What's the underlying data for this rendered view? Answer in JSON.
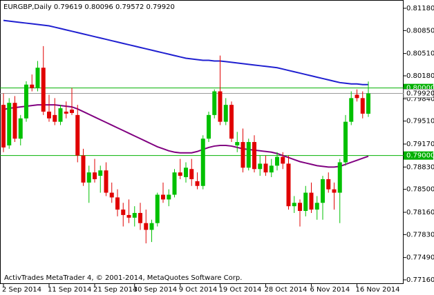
{
  "chart_data": {
    "type": "candlestick",
    "header": "EURGBP,Daily  0.79619 0.80096 0.79572 0.79920",
    "footer": "ActivTrades MetaTrader 4, © 2001-2014, MetaQuotes Software Corp.",
    "up_color": "#00c000",
    "down_color": "#e00000",
    "categories": [
      "2 Sep 2014",
      null,
      null,
      null,
      null,
      null,
      null,
      null,
      "11 Sep 2014",
      null,
      null,
      null,
      null,
      null,
      null,
      null,
      "21 Sep 2014",
      null,
      null,
      null,
      null,
      null,
      null,
      "30 Sep 2014",
      null,
      null,
      null,
      null,
      null,
      null,
      null,
      "9 Oct 2014",
      null,
      null,
      null,
      null,
      null,
      null,
      "19 Oct 2014",
      null,
      null,
      null,
      null,
      null,
      null,
      null,
      "28 Oct 2014",
      null,
      null,
      null,
      null,
      null,
      null,
      null,
      "6 Nov 2014",
      null,
      null,
      null,
      null,
      null,
      null,
      null,
      "16 Nov 2014",
      null,
      null
    ],
    "ohlc": [
      [
        0.7975,
        0.7992,
        0.7905,
        0.7912
      ],
      [
        0.7915,
        0.7985,
        0.791,
        0.7978
      ],
      [
        0.7978,
        0.7988,
        0.792,
        0.7925
      ],
      [
        0.7925,
        0.796,
        0.7915,
        0.7955
      ],
      [
        0.7955,
        0.801,
        0.795,
        0.8005
      ],
      [
        0.8005,
        0.802,
        0.7995,
        0.8
      ],
      [
        0.8,
        0.804,
        0.7995,
        0.803
      ],
      [
        0.803,
        0.8062,
        0.796,
        0.7965
      ],
      [
        0.7965,
        0.799,
        0.795,
        0.7955
      ],
      [
        0.796,
        0.7985,
        0.7945,
        0.795
      ],
      [
        0.795,
        0.7975,
        0.7945,
        0.797
      ],
      [
        0.7965,
        0.798,
        0.7955,
        0.7962
      ],
      [
        0.7968,
        0.8,
        0.796,
        0.7963
      ],
      [
        0.796,
        0.7975,
        0.789,
        0.79
      ],
      [
        0.79,
        0.791,
        0.7855,
        0.786
      ],
      [
        0.786,
        0.7885,
        0.783,
        0.7875
      ],
      [
        0.7875,
        0.7895,
        0.786,
        0.7865
      ],
      [
        0.787,
        0.7885,
        0.7845,
        0.7878
      ],
      [
        0.7878,
        0.789,
        0.784,
        0.7845
      ],
      [
        0.7845,
        0.786,
        0.783,
        0.7838
      ],
      [
        0.7838,
        0.785,
        0.781,
        0.782
      ],
      [
        0.782,
        0.783,
        0.7795,
        0.7812
      ],
      [
        0.7812,
        0.7835,
        0.78,
        0.7808
      ],
      [
        0.7808,
        0.7825,
        0.7795,
        0.7815
      ],
      [
        0.7815,
        0.783,
        0.779,
        0.78
      ],
      [
        0.78,
        0.782,
        0.777,
        0.779
      ],
      [
        0.779,
        0.7805,
        0.7772,
        0.78
      ],
      [
        0.78,
        0.7845,
        0.7795,
        0.7842
      ],
      [
        0.7842,
        0.786,
        0.783,
        0.7835
      ],
      [
        0.7835,
        0.785,
        0.7825,
        0.7842
      ],
      [
        0.7842,
        0.788,
        0.7838,
        0.7875
      ],
      [
        0.7875,
        0.7895,
        0.7865,
        0.787
      ],
      [
        0.7868,
        0.789,
        0.786,
        0.7882
      ],
      [
        0.788,
        0.7895,
        0.7855,
        0.7865
      ],
      [
        0.7862,
        0.7875,
        0.785,
        0.7855
      ],
      [
        0.7855,
        0.793,
        0.785,
        0.7925
      ],
      [
        0.7925,
        0.7965,
        0.792,
        0.796
      ],
      [
        0.796,
        0.7998,
        0.7955,
        0.7995
      ],
      [
        0.7995,
        0.8048,
        0.7945,
        0.795
      ],
      [
        0.795,
        0.7985,
        0.7945,
        0.7975
      ],
      [
        0.7975,
        0.798,
        0.792,
        0.7925
      ],
      [
        0.7915,
        0.7935,
        0.7905,
        0.792
      ],
      [
        0.792,
        0.794,
        0.7875,
        0.7882
      ],
      [
        0.7882,
        0.7925,
        0.7878,
        0.792
      ],
      [
        0.792,
        0.793,
        0.7875,
        0.788
      ],
      [
        0.788,
        0.79,
        0.787,
        0.7888
      ],
      [
        0.7888,
        0.79,
        0.787,
        0.7875
      ],
      [
        0.7875,
        0.7895,
        0.7868,
        0.7885
      ],
      [
        0.7885,
        0.7905,
        0.7878,
        0.7898
      ],
      [
        0.7898,
        0.7905,
        0.788,
        0.7888
      ],
      [
        0.7888,
        0.79,
        0.782,
        0.7825
      ],
      [
        0.7825,
        0.784,
        0.7815,
        0.783
      ],
      [
        0.783,
        0.7835,
        0.7795,
        0.7818
      ],
      [
        0.7818,
        0.7855,
        0.781,
        0.7845
      ],
      [
        0.7845,
        0.786,
        0.7815,
        0.782
      ],
      [
        0.782,
        0.784,
        0.7805,
        0.783
      ],
      [
        0.783,
        0.787,
        0.7805,
        0.7865
      ],
      [
        0.7865,
        0.7875,
        0.7845,
        0.785
      ],
      [
        0.785,
        0.786,
        0.782,
        0.7845
      ],
      [
        0.7845,
        0.7895,
        0.78,
        0.789
      ],
      [
        0.789,
        0.796,
        0.7885,
        0.795
      ],
      [
        0.795,
        0.7995,
        0.7945,
        0.7985
      ],
      [
        0.799,
        0.7998,
        0.798,
        0.7985
      ],
      [
        0.7985,
        0.7995,
        0.7955,
        0.7962
      ],
      [
        0.79619,
        0.80096,
        0.79572,
        0.7992
      ]
    ],
    "moving_averages": [
      {
        "color": "#1f1fd0",
        "values": [
          0.81,
          0.8099,
          0.8098,
          0.8097,
          0.8096,
          0.8095,
          0.8094,
          0.8093,
          0.8092,
          0.809,
          0.8088,
          0.8086,
          0.8084,
          0.8082,
          0.808,
          0.8078,
          0.8076,
          0.8074,
          0.8072,
          0.807,
          0.8068,
          0.8066,
          0.8064,
          0.8062,
          0.806,
          0.8058,
          0.8056,
          0.8054,
          0.8052,
          0.805,
          0.8048,
          0.8046,
          0.8044,
          0.8043,
          0.8042,
          0.8041,
          0.8041,
          0.804,
          0.804,
          0.8039,
          0.8038,
          0.8037,
          0.8036,
          0.8035,
          0.8034,
          0.8033,
          0.8032,
          0.8031,
          0.803,
          0.8028,
          0.8026,
          0.8024,
          0.8022,
          0.802,
          0.8018,
          0.8016,
          0.8014,
          0.8012,
          0.801,
          0.8008,
          0.8007,
          0.8006,
          0.8006,
          0.8005,
          0.8005
        ]
      },
      {
        "color": "#800080",
        "values": [
          0.7968,
          0.797,
          0.7971,
          0.7972,
          0.7973,
          0.7974,
          0.7975,
          0.7975,
          0.7975,
          0.7975,
          0.7974,
          0.7973,
          0.7972,
          0.7969,
          0.7965,
          0.7961,
          0.7957,
          0.7953,
          0.7949,
          0.7945,
          0.7941,
          0.7937,
          0.7933,
          0.7929,
          0.7925,
          0.7921,
          0.7917,
          0.7913,
          0.791,
          0.7907,
          0.7905,
          0.7904,
          0.7904,
          0.7904,
          0.7906,
          0.7909,
          0.7912,
          0.7914,
          0.7915,
          0.7915,
          0.7914,
          0.7912,
          0.791,
          0.7909,
          0.7908,
          0.7907,
          0.7906,
          0.7905,
          0.7903,
          0.79,
          0.7897,
          0.7894,
          0.7891,
          0.7889,
          0.7887,
          0.7885,
          0.7884,
          0.7883,
          0.7883,
          0.7884,
          0.7887,
          0.789,
          0.7893,
          0.7896,
          0.7899
        ]
      }
    ],
    "levels": [
      {
        "value": 0.8,
        "label": "0.80000"
      },
      {
        "value": 0.79,
        "label": "0.79000"
      }
    ],
    "level_color": "#00b000",
    "last_price": {
      "value": 0.7992,
      "label": "0.79920"
    },
    "ylim": [
      0.7716,
      0.8118
    ],
    "yticks": [
      {
        "value": 0.8118,
        "label": "0.81180"
      },
      {
        "value": 0.8085,
        "label": "0.80850"
      },
      {
        "value": 0.8051,
        "label": "0.80510"
      },
      {
        "value": 0.8018,
        "label": "0.80180"
      },
      {
        "value": 0.7984,
        "label": "0.79840"
      },
      {
        "value": 0.7951,
        "label": "0.79510"
      },
      {
        "value": 0.7917,
        "label": "0.79170"
      },
      {
        "value": 0.7883,
        "label": "0.78830"
      },
      {
        "value": 0.785,
        "label": "0.78500"
      },
      {
        "value": 0.7816,
        "label": "0.78160"
      },
      {
        "value": 0.7783,
        "label": "0.77830"
      },
      {
        "value": 0.7749,
        "label": "0.77490"
      },
      {
        "value": 0.7716,
        "label": "0.77160"
      }
    ]
  }
}
